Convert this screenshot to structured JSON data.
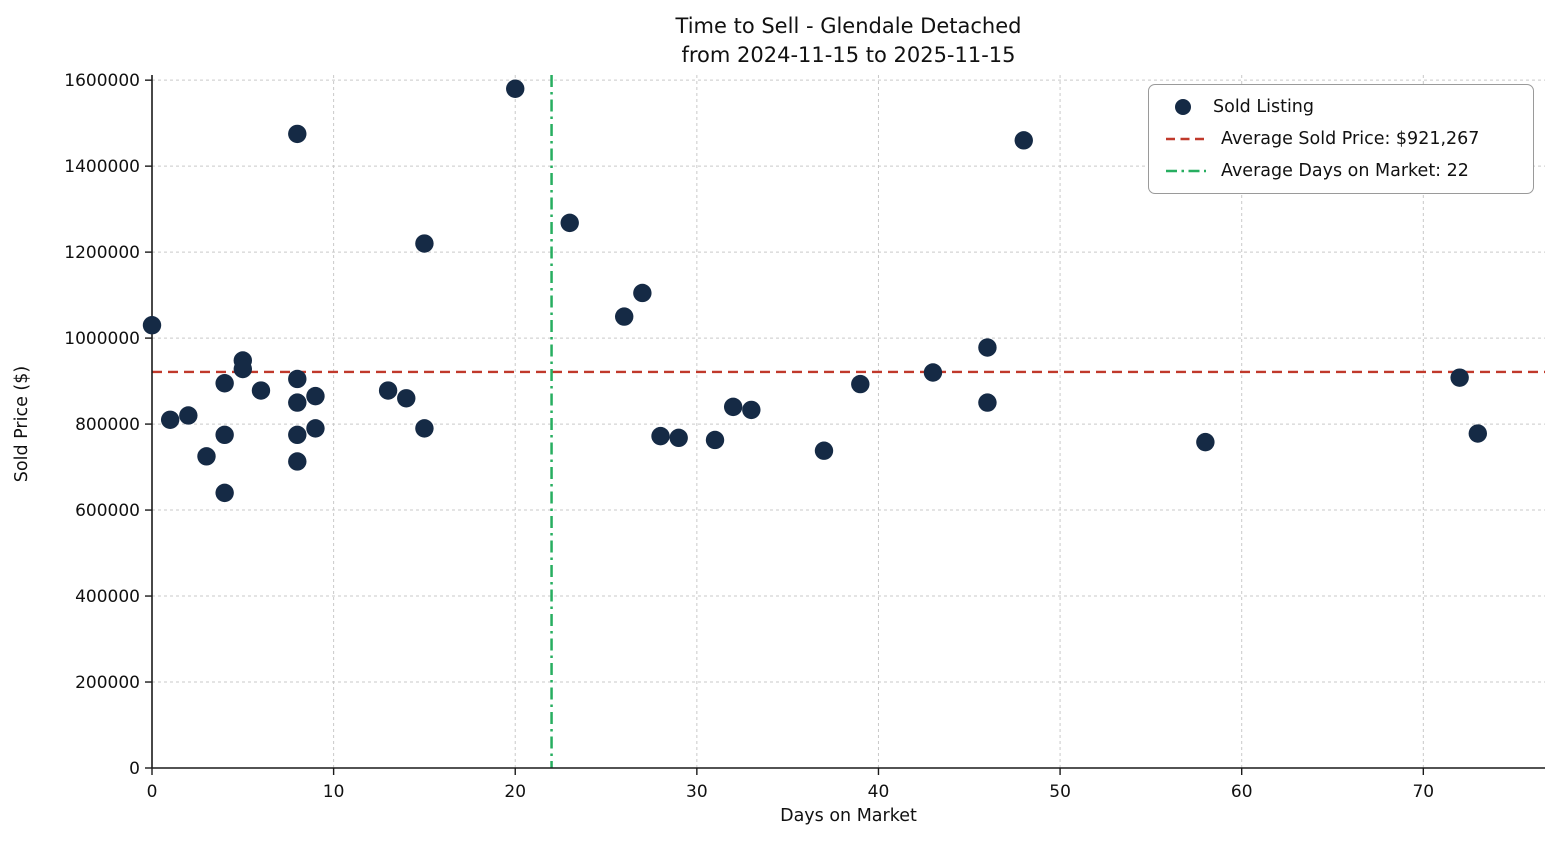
{
  "title": {
    "line1": "Time to Sell - Glendale Detached",
    "line2": "from 2024-11-15 to 2025-11-15"
  },
  "chart_data": {
    "type": "scatter",
    "title": "Time to Sell - Glendale Detached\nfrom 2024-11-15 to 2025-11-15",
    "xlabel": "Days on Market",
    "ylabel": "Sold Price ($)",
    "xlim": [
      0,
      76.7
    ],
    "ylim": [
      0,
      1612000
    ],
    "xticks": [
      0,
      10,
      20,
      30,
      40,
      50,
      60,
      70
    ],
    "yticks": [
      0,
      200000,
      400000,
      600000,
      800000,
      1000000,
      1200000,
      1400000,
      1600000
    ],
    "grid": true,
    "avg_sold_price": 921267,
    "avg_days_on_market": 22,
    "points": [
      [
        0,
        1030000
      ],
      [
        1,
        810000
      ],
      [
        2,
        820000
      ],
      [
        3,
        725000
      ],
      [
        4,
        895000
      ],
      [
        4,
        775000
      ],
      [
        4,
        640000
      ],
      [
        5,
        948000
      ],
      [
        5,
        928000
      ],
      [
        6,
        878000
      ],
      [
        8,
        1475000
      ],
      [
        8,
        905000
      ],
      [
        8,
        850000
      ],
      [
        8,
        775000
      ],
      [
        8,
        713000
      ],
      [
        9,
        865000
      ],
      [
        9,
        790000
      ],
      [
        13,
        878000
      ],
      [
        14,
        860000
      ],
      [
        15,
        1220000
      ],
      [
        15,
        790000
      ],
      [
        20,
        1580000
      ],
      [
        23,
        1268000
      ],
      [
        26,
        1050000
      ],
      [
        27,
        1105000
      ],
      [
        28,
        772000
      ],
      [
        29,
        768000
      ],
      [
        31,
        763000
      ],
      [
        32,
        840000
      ],
      [
        33,
        833000
      ],
      [
        37,
        738000
      ],
      [
        39,
        893000
      ],
      [
        43,
        920000
      ],
      [
        46,
        978000
      ],
      [
        46,
        850000
      ],
      [
        48,
        1460000
      ],
      [
        58,
        758000
      ],
      [
        72,
        908000
      ],
      [
        73,
        778000
      ]
    ],
    "legend": {
      "position": "upper right",
      "entries": [
        {
          "type": "marker",
          "label": "Sold Listing"
        },
        {
          "type": "dashed",
          "label": "Average Sold Price: $921,267"
        },
        {
          "type": "dashdot",
          "label": "Average Days on Market: 22"
        }
      ]
    },
    "colors": {
      "point": "#152a45",
      "avg_price_line": "#c0392b",
      "avg_dom_line": "#27ae60",
      "grid": "#c9c9c9",
      "spine": "#1a1a1a"
    }
  }
}
